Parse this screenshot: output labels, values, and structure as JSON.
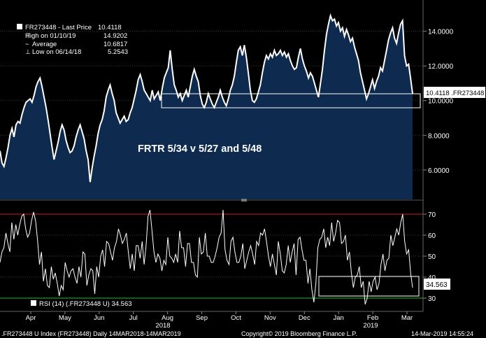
{
  "colors": {
    "background": "#000000",
    "area_fill": "#0e2a4f",
    "price_line": "#ffffff",
    "rsi_line": "#ffffff",
    "overbought_line": "#d01818",
    "oversold_line": "#18c018",
    "grid": "#3a3a3a",
    "highlight_box": "#ffffff"
  },
  "legend": {
    "series": "FR273448 - Last Price",
    "last_value": "10.4118",
    "high_label": "High on 01/10/19",
    "high_value": "14.9202",
    "avg_label": "Average",
    "avg_value": "10.6817",
    "low_label": "Low on 06/14/18",
    "low_value": "5.2543"
  },
  "annotation": "FRTR 5/34 v 5/27 and 5/48",
  "price_tag": "10.4118 .FR273448",
  "rsi_legend": "RSI (14) (.FR273448 U) 34.563",
  "rsi_tag": "34.563",
  "footer": {
    "left": ".FR273448 U Index (FR273448)  Daily 14MAR2018-14MAR2019",
    "center": "Copyright© 2019 Bloomberg Finance L.P.",
    "right": "14-Mar-2019 14:55:24"
  },
  "chart_data": [
    {
      "type": "area",
      "series": [
        {
          "name": "FR273448 - Last Price",
          "values": [
            7.1,
            6.4,
            6.2,
            6.7,
            7.3,
            8.0,
            8.4,
            7.9,
            8.6,
            8.8,
            8.7,
            9.2,
            9.6,
            9.9,
            10.0,
            10.1,
            9.9,
            10.3,
            10.8,
            11.1,
            11.3,
            10.8,
            10.2,
            9.6,
            8.9,
            8.1,
            7.3,
            6.6,
            7.1,
            7.6,
            8.2,
            8.6,
            8.3,
            7.7,
            7.3,
            7.0,
            7.1,
            7.4,
            7.9,
            8.3,
            8.6,
            8.2,
            7.8,
            7.1,
            6.6,
            5.3,
            6.1,
            6.8,
            7.4,
            8.1,
            8.6,
            8.9,
            9.4,
            10.2,
            10.6,
            10.9,
            10.4,
            10.0,
            9.3,
            9.0,
            8.7,
            8.9,
            9.1,
            8.8,
            8.9,
            9.3,
            9.6,
            10.1,
            10.6,
            11.2,
            11.5,
            11.1,
            10.6,
            10.4,
            10.2,
            10.0,
            10.6,
            10.1,
            10.3,
            10.5,
            10.0,
            10.7,
            11.3,
            11.6,
            11.9,
            12.9,
            11.8,
            10.9,
            10.6,
            10.2,
            10.4,
            10.0,
            10.3,
            10.6,
            10.2,
            10.8,
            11.4,
            11.8,
            11.4,
            11.1,
            10.3,
            9.8,
            9.6,
            9.9,
            10.4,
            10.1,
            9.8,
            9.6,
            9.9,
            10.2,
            10.6,
            10.2,
            9.9,
            9.7,
            10.1,
            10.6,
            10.9,
            11.4,
            12.2,
            12.9,
            13.1,
            12.6,
            13.2,
            12.5,
            11.6,
            10.6,
            10.0,
            9.9,
            10.1,
            10.5,
            10.9,
            11.6,
            12.2,
            12.6,
            12.4,
            12.7,
            12.5,
            12.9,
            12.6,
            12.7,
            12.9,
            12.6,
            12.8,
            12.5,
            12.7,
            12.3,
            12.0,
            11.8,
            11.9,
            12.5,
            13.0,
            12.4,
            12.0,
            11.7,
            11.3,
            11.6,
            11.4,
            11.0,
            10.6,
            10.2,
            11.0,
            11.8,
            12.9,
            13.8,
            14.4,
            14.9,
            14.6,
            14.7,
            14.3,
            14.5,
            14.0,
            14.2,
            13.7,
            14.1,
            13.8,
            13.4,
            13.6,
            13.1,
            12.7,
            12.3,
            11.6,
            11.1,
            10.6,
            10.1,
            10.4,
            10.8,
            11.2,
            10.7,
            11.1,
            11.4,
            11.9,
            11.7,
            12.3,
            12.9,
            13.5,
            13.9,
            14.2,
            13.6,
            13.3,
            13.9,
            14.4,
            14.6,
            12.6,
            12.0,
            12.1,
            11.3,
            10.4
          ]
        }
      ],
      "x_ticks": [
        "Apr",
        "May",
        "Jun",
        "Jul",
        "Aug",
        "Sep",
        "Oct",
        "Nov",
        "Dec",
        "Jan",
        "Feb",
        "Mar"
      ],
      "year_labels": [
        "2018",
        "2019"
      ],
      "y_ticks": [
        "6.0000",
        "8.0000",
        "10.0000",
        "12.0000",
        "14.0000"
      ],
      "ylim": [
        4.3,
        15.8
      ],
      "grid": true,
      "legend_position": "top-left"
    },
    {
      "type": "line",
      "series": [
        {
          "name": "RSI (14) (.FR273448 U)",
          "values": [
            47,
            52,
            54,
            61,
            56,
            52,
            66,
            58,
            65,
            60,
            65,
            69,
            70,
            63,
            59,
            61,
            67,
            71,
            67,
            58,
            46,
            52,
            38,
            44,
            36,
            35,
            45,
            39,
            42,
            37,
            31,
            36,
            34,
            47,
            43,
            40,
            43,
            44,
            40,
            37,
            45,
            40,
            52,
            51,
            36,
            41,
            44,
            43,
            32,
            45,
            40,
            50,
            53,
            45,
            57,
            56,
            52,
            48,
            54,
            57,
            63,
            60,
            56,
            58,
            61,
            52,
            44,
            51,
            43,
            55,
            55,
            49,
            57,
            46,
            55,
            69,
            72,
            62,
            52,
            47,
            51,
            49,
            43,
            48,
            46,
            59,
            50,
            49,
            47,
            51,
            47,
            62,
            54,
            54,
            45,
            56,
            56,
            47,
            47,
            41,
            40,
            59,
            51,
            52,
            61,
            50,
            50,
            47,
            47,
            50,
            54,
            59,
            61,
            72,
            53,
            48,
            46,
            57,
            59,
            52,
            47,
            47,
            50,
            56,
            44,
            48,
            52,
            55,
            51,
            46,
            57,
            55,
            61,
            60,
            63,
            57,
            50,
            45,
            51,
            46,
            41,
            57,
            51,
            43,
            42,
            46,
            55,
            47,
            52,
            56,
            41,
            58,
            59,
            53,
            48,
            48,
            37,
            44,
            34,
            28,
            37,
            54,
            58,
            59,
            63,
            54,
            59,
            55,
            66,
            57,
            61,
            67,
            66,
            56,
            57,
            60,
            48,
            52,
            42,
            35,
            40,
            41,
            45,
            35,
            38,
            27,
            30,
            38,
            33,
            38,
            40,
            34,
            37,
            46,
            51,
            43,
            48,
            49,
            60,
            55,
            59,
            63,
            60,
            66,
            70,
            57,
            51,
            53,
            42,
            35
          ]
        }
      ],
      "y_ticks": [
        "30",
        "40",
        "50",
        "60",
        "70"
      ],
      "ylim": [
        24,
        76
      ],
      "overbought": 70,
      "oversold": 30
    }
  ]
}
